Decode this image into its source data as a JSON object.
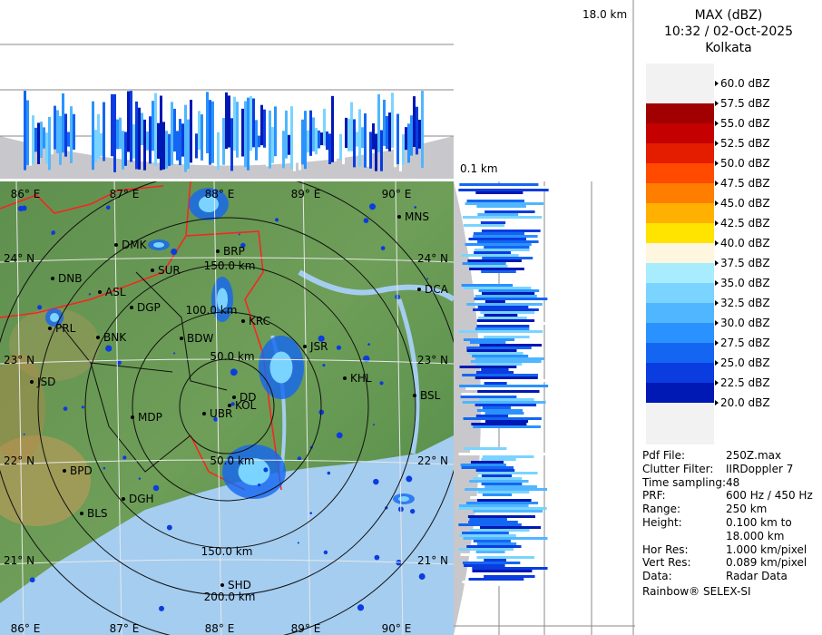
{
  "header": {
    "title": "MAX (dBZ)",
    "time": "10:32 / 02-Oct-2025",
    "location": "Kolkata"
  },
  "top_panel": {
    "height_label": "18.0 km"
  },
  "side_panel": {
    "height_label": "0.1 km"
  },
  "legend": {
    "levels": [
      "60.0 dBZ",
      "57.5 dBZ",
      "55.0 dBZ",
      "52.5 dBZ",
      "50.0 dBZ",
      "47.5 dBZ",
      "45.0 dBZ",
      "42.5 dBZ",
      "40.0 dBZ",
      "37.5 dBZ",
      "35.0 dBZ",
      "32.5 dBZ",
      "30.0 dBZ",
      "27.5 dBZ",
      "25.0 dBZ",
      "22.5 dBZ",
      "20.0 dBZ"
    ],
    "band_colors": [
      "#f2f2f2",
      "#a00000",
      "#c40000",
      "#e41c00",
      "#ff4a00",
      "#ff7e00",
      "#ffb000",
      "#ffe400",
      "#fff6e0",
      "#a8ecff",
      "#7ad4ff",
      "#50b6ff",
      "#2a92ff",
      "#1466f2",
      "#0a3ce0",
      "#0018b4"
    ]
  },
  "map": {
    "lon_labels_top": [
      "86° E",
      "87° E",
      "88° E",
      "89° E",
      "90° E"
    ],
    "lon_labels_bottom": [
      "86° E",
      "87° E",
      "88° E",
      "89° E",
      "90° E"
    ],
    "lat_labels_left": [
      "24° N",
      "23° N",
      "22° N",
      "21° N"
    ],
    "lat_labels_right": [
      "24° N",
      "23° N",
      "22° N",
      "21° N"
    ],
    "range_labels": [
      "50.0 km",
      "100.0 km",
      "150.0 km",
      "50.0 km",
      "150.0 km",
      "200.0 km"
    ],
    "cities": [
      "MNS",
      "DMK",
      "BRP",
      "SUR",
      "DNB",
      "ASL",
      "DGP",
      "DCA",
      "KRC",
      "PRL",
      "BNK",
      "BDW",
      "JSR",
      "KHL",
      "JSD",
      "DD",
      "BSL",
      "KOL",
      "MDP",
      "UBR",
      "BPD",
      "DGH",
      "BLS",
      "SHD"
    ]
  },
  "info": {
    "rows": [
      [
        "Pdf File:",
        "250Z.max"
      ],
      [
        "Clutter Filter:",
        "IIRDoppler 7"
      ],
      [
        "Time sampling:",
        "48"
      ],
      [
        "PRF:",
        "600 Hz / 450 Hz"
      ],
      [
        "Range:",
        "250 km"
      ],
      [
        "Height:",
        "0.100 km to 18.000 km"
      ],
      [
        "Hor Res:",
        "1.000 km/pixel"
      ],
      [
        "Vert Res:",
        "0.089 km/pixel"
      ],
      [
        "Data:",
        "Radar Data"
      ]
    ],
    "footer": "Rainbow® SELEX-SI"
  }
}
